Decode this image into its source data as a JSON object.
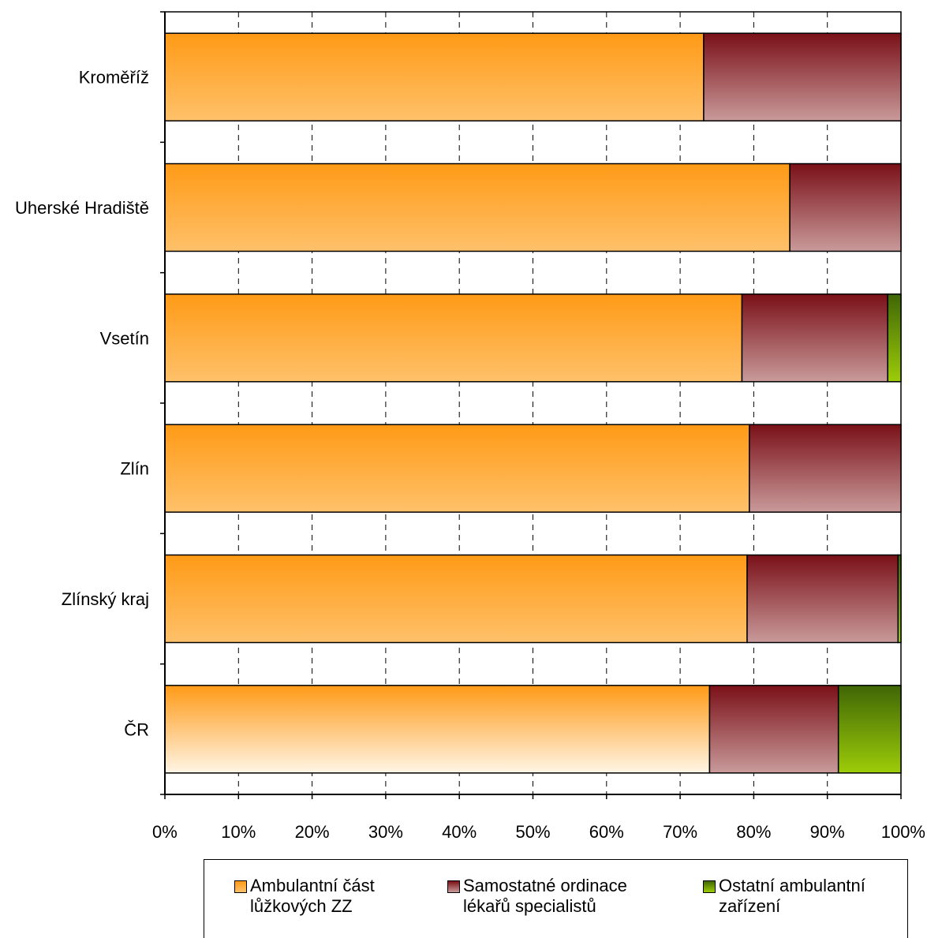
{
  "chart_data": {
    "type": "bar",
    "orientation": "horizontal",
    "stacked": "percent",
    "categories": [
      "Kroměříž",
      "Uherské Hradiště",
      "Vsetín",
      "Zlín",
      "Zlínský kraj",
      "ČR"
    ],
    "series": [
      {
        "name": "Ambulantní část\nlůžkových ZZ",
        "values": [
          73.2,
          84.9,
          78.4,
          79.4,
          79.1,
          74.0
        ],
        "color": "#ff9a16",
        "color_light": "#ffc16a"
      },
      {
        "name": "Samostatné ordinace\nlékařů specialistů",
        "values": [
          26.8,
          15.1,
          19.8,
          20.6,
          20.5,
          17.5
        ],
        "color": "#7a1018",
        "color_light": "#c99a9a"
      },
      {
        "name": "Ostatní ambulantní\nzařízení",
        "values": [
          0.0,
          0.0,
          1.8,
          0.0,
          0.4,
          8.5
        ],
        "color": "#3f6606",
        "color_light": "#9dcc08"
      }
    ],
    "xlim": [
      0,
      100
    ],
    "xticks": [
      "0%",
      "10%",
      "20%",
      "30%",
      "40%",
      "50%",
      "60%",
      "70%",
      "80%",
      "90%",
      "100%"
    ],
    "grid": "vertical dashed",
    "legend": "bottom",
    "title": "",
    "xlabel": "",
    "ylabel": ""
  }
}
